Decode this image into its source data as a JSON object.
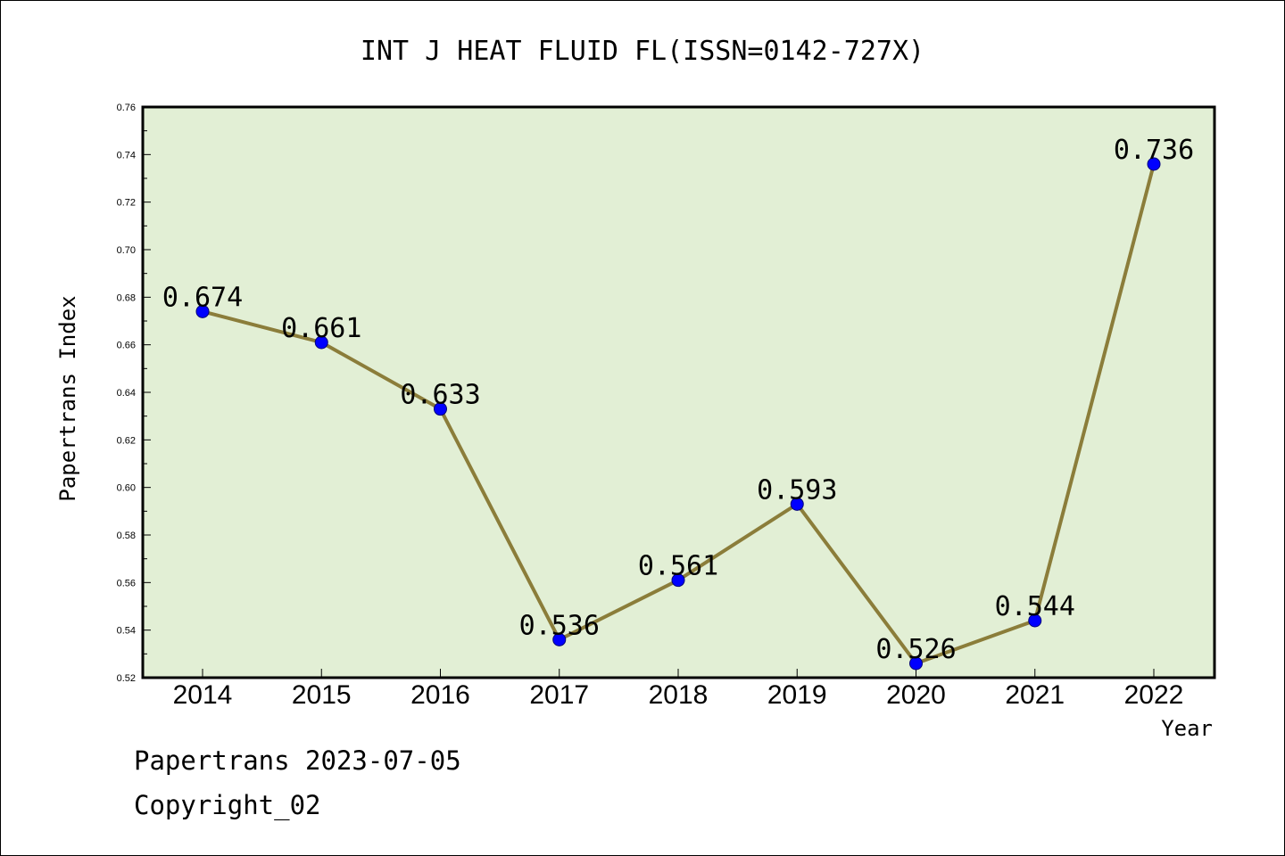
{
  "chart_data": {
    "type": "line",
    "title": "INT J HEAT FLUID FL(ISSN=0142-727X)",
    "xlabel": "Year",
    "ylabel": "Papertrans Index",
    "categories": [
      "2014",
      "2015",
      "2016",
      "2017",
      "2018",
      "2019",
      "2020",
      "2021",
      "2022"
    ],
    "series": [
      {
        "values": [
          0.674,
          0.661,
          0.633,
          0.536,
          0.561,
          0.593,
          0.526,
          0.544,
          0.736
        ],
        "labels": [
          "0.674",
          "0.661",
          "0.633",
          "0.536",
          "0.561",
          "0.593",
          "0.526",
          "0.544",
          "0.736"
        ]
      }
    ],
    "ylim": [
      0.52,
      0.76
    ],
    "yticks": [
      "0.52",
      "0.54",
      "0.56",
      "0.58",
      "0.60",
      "0.62",
      "0.64",
      "0.66",
      "0.68",
      "0.70",
      "0.72",
      "0.74",
      "0.76"
    ],
    "grid": false,
    "legend": "none",
    "colors": {
      "plot_background": "#e2efd5",
      "line": "#8b7d3a",
      "marker": "#0000ff"
    }
  },
  "footer": {
    "date_line": "Papertrans 2023-07-05",
    "copyright": "Copyright_02"
  }
}
